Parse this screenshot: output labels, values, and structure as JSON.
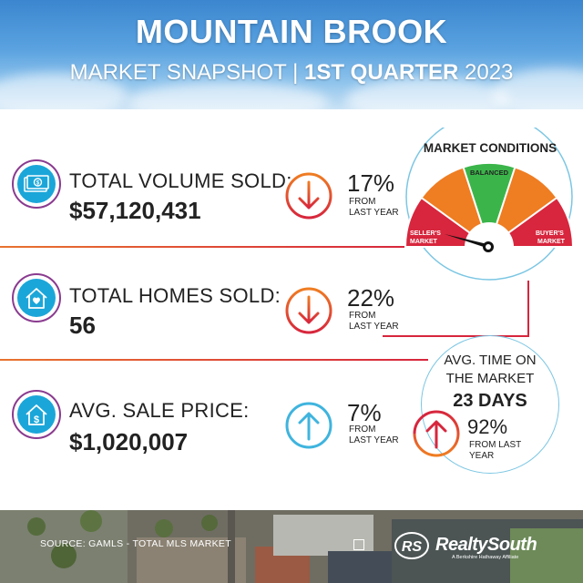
{
  "header": {
    "title": "MOUNTAIN BROOK",
    "subtitle_prefix": "MARKET SNAPSHOT | ",
    "subtitle_bold": "1ST QUARTER",
    "subtitle_year": " 2023"
  },
  "stats": [
    {
      "label": "TOTAL VOLUME SOLD:",
      "value": "$57,120,431",
      "change": "17%",
      "change_note_1": "FROM",
      "change_note_2": "LAST YEAR",
      "direction": "down",
      "icon": "money-icon"
    },
    {
      "label": "TOTAL HOMES SOLD:",
      "value": "56",
      "change": "22%",
      "change_note_1": "FROM",
      "change_note_2": "LAST YEAR",
      "direction": "down",
      "icon": "house-heart-icon"
    },
    {
      "label": "AVG. SALE PRICE:",
      "value": "$1,020,007",
      "change": "7%",
      "change_note_1": "FROM",
      "change_note_2": "LAST YEAR",
      "direction": "up",
      "icon": "house-dollar-icon"
    }
  ],
  "gauge": {
    "title": "MARKET CONDITIONS",
    "balanced_label": "BALANCED",
    "sellers_label_1": "SELLER'S",
    "sellers_label_2": "MARKET",
    "buyers_label_1": "BUYER'S",
    "buyers_label_2": "MARKET",
    "needle_position": "sellers-market"
  },
  "avg_time": {
    "title_1": "AVG. TIME ON",
    "title_2": "THE MARKET",
    "days": "23 DAYS",
    "change": "92%",
    "change_note_1": "FROM LAST",
    "change_note_2": "YEAR",
    "direction": "up"
  },
  "footer": {
    "source": "SOURCE: GAMLS - TOTAL MLS MARKET",
    "brand": "RealtySouth",
    "brand_sub": "A Berkshire Hathaway Affiliate",
    "logo_text": "RS"
  },
  "colors": {
    "red": "#d7263d",
    "orange": "#ef7d22",
    "green": "#3bb54a",
    "blue": "#1ba6d9",
    "purple": "#8a3b8f"
  }
}
